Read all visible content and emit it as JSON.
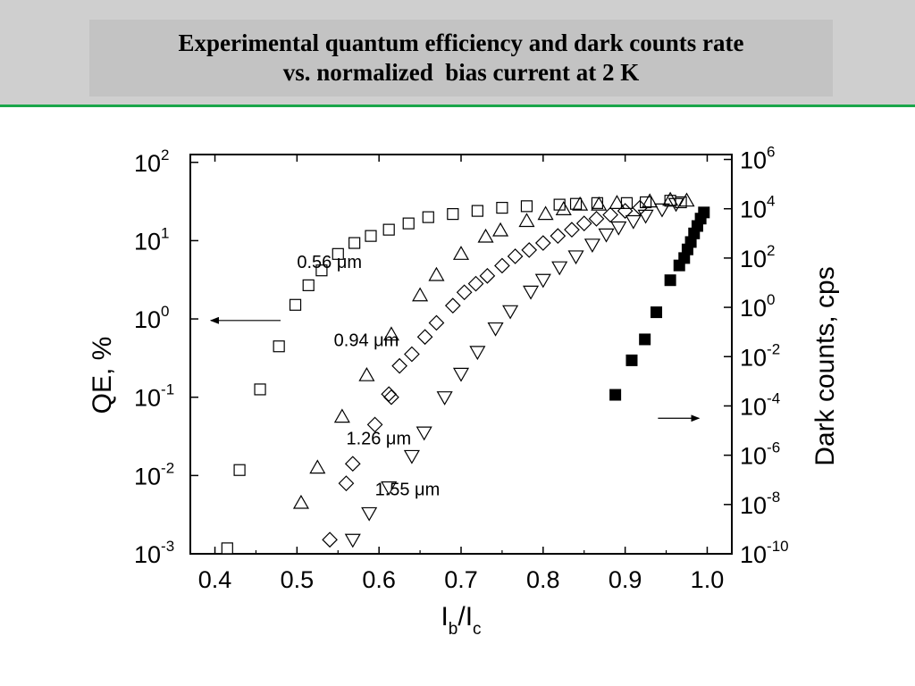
{
  "slide": {
    "title_lines": [
      "Experimental quantum efficiency and dark counts rate",
      "vs. normalized  bias current at 2 K"
    ]
  },
  "chart_data": {
    "type": "scatter",
    "xlabel": {
      "main": "I",
      "sub1": "b",
      "mid": "/I",
      "sub2": "c"
    },
    "ylabel_left": "QE, %",
    "ylabel_right": "Dark counts, cps",
    "xlim": [
      0.37,
      1.03
    ],
    "xticks": [
      "0.4",
      "0.5",
      "0.6",
      "0.7",
      "0.8",
      "0.9",
      "1.0"
    ],
    "y_left": {
      "scale": "log",
      "range_exp": [
        -3,
        2.1
      ],
      "ticks_exp": [
        2,
        1,
        0,
        -1,
        -2,
        -3
      ],
      "base": "10"
    },
    "y_right": {
      "scale": "log",
      "range_exp": [
        -10,
        6.2
      ],
      "ticks_exp": [
        6,
        4,
        2,
        0,
        -2,
        -4,
        -6,
        -8,
        -10
      ],
      "base": "10"
    },
    "annotations": [
      {
        "text": "0.56 μm",
        "x": 0.5,
        "y_exp": 0.65
      },
      {
        "text": "0.94 μm",
        "x": 0.545,
        "y_exp": -0.35
      },
      {
        "text": "1.26 μm",
        "x": 0.56,
        "y_exp": -1.6
      },
      {
        "text": "1.55 μm",
        "x": 0.595,
        "y_exp": -2.25
      }
    ],
    "arrows": [
      {
        "name": "qe-axis-arrow",
        "from_x": 0.48,
        "to_x": 0.395,
        "y_exp": -0.02,
        "axis": "left"
      },
      {
        "name": "dark-axis-arrow",
        "from_x": 0.94,
        "to_x": 0.99,
        "y_exp": -4.5,
        "axis": "right"
      }
    ],
    "series": [
      {
        "name": "0.56 μm",
        "marker": "square-open",
        "axis": "left",
        "x": [
          0.415,
          0.43,
          0.455,
          0.478,
          0.498,
          0.514,
          0.53,
          0.55,
          0.57,
          0.59,
          0.612,
          0.636,
          0.66,
          0.69,
          0.72,
          0.75,
          0.78,
          0.82,
          0.84,
          0.866,
          0.902,
          0.925,
          0.955,
          0.968
        ],
        "y_exp": [
          -2.93,
          -1.93,
          -0.9,
          -0.35,
          0.18,
          0.43,
          0.62,
          0.83,
          0.97,
          1.06,
          1.14,
          1.22,
          1.3,
          1.34,
          1.38,
          1.42,
          1.44,
          1.46,
          1.47,
          1.48,
          1.48,
          1.49,
          1.51,
          1.49
        ]
      },
      {
        "name": "0.94 μm",
        "marker": "triangle-up-open",
        "axis": "left",
        "x": [
          0.505,
          0.525,
          0.555,
          0.585,
          0.615,
          0.65,
          0.67,
          0.7,
          0.73,
          0.748,
          0.78,
          0.803,
          0.825,
          0.845,
          0.868,
          0.89,
          0.93,
          0.955,
          0.975
        ],
        "y_exp": [
          -2.35,
          -1.9,
          -1.25,
          -0.72,
          -0.2,
          0.3,
          0.56,
          0.83,
          1.05,
          1.13,
          1.25,
          1.34,
          1.4,
          1.46,
          1.46,
          1.48,
          1.5,
          1.52,
          1.51
        ]
      },
      {
        "name": "1.26 μm",
        "marker": "diamond-open",
        "axis": "left",
        "x": [
          0.54,
          0.56,
          0.568,
          0.595,
          0.612,
          0.615,
          0.625,
          0.64,
          0.656,
          0.67,
          0.69,
          0.704,
          0.718,
          0.732,
          0.75,
          0.766,
          0.783,
          0.8,
          0.818,
          0.835,
          0.85,
          0.865,
          0.882,
          0.9,
          0.918
        ],
        "y_exp": [
          -2.82,
          -2.1,
          -1.85,
          -1.35,
          -0.96,
          -1.0,
          -0.6,
          -0.45,
          -0.23,
          -0.05,
          0.17,
          0.34,
          0.45,
          0.55,
          0.68,
          0.8,
          0.88,
          0.97,
          1.06,
          1.14,
          1.22,
          1.28,
          1.33,
          1.38,
          1.42
        ]
      },
      {
        "name": "1.55 μm",
        "marker": "triangle-down-open",
        "axis": "left",
        "x": [
          0.568,
          0.588,
          0.612,
          0.64,
          0.655,
          0.68,
          0.7,
          0.72,
          0.742,
          0.76,
          0.785,
          0.8,
          0.82,
          0.84,
          0.86,
          0.877,
          0.892,
          0.91,
          0.925,
          0.945,
          0.962
        ],
        "y_exp": [
          -2.82,
          -2.48,
          -2.15,
          -1.75,
          -1.45,
          -1.0,
          -0.7,
          -0.42,
          -0.12,
          0.1,
          0.35,
          0.5,
          0.66,
          0.8,
          0.95,
          1.08,
          1.17,
          1.25,
          1.32,
          1.4,
          1.47
        ]
      },
      {
        "name": "Dark counts",
        "marker": "square-filled",
        "axis": "right",
        "x": [
          0.888,
          0.908,
          0.924,
          0.938,
          0.955,
          0.966,
          0.972,
          0.976,
          0.98,
          0.984,
          0.988,
          0.992,
          0.996
        ],
        "y_exp": [
          -3.55,
          -2.15,
          -1.3,
          -0.2,
          1.1,
          1.7,
          2.0,
          2.35,
          2.65,
          3.0,
          3.3,
          3.6,
          3.85
        ]
      }
    ]
  }
}
